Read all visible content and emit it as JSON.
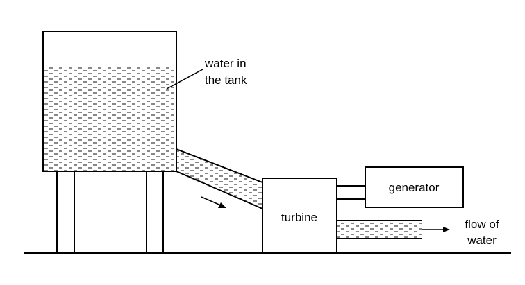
{
  "labels": {
    "water_tank_line1": "water in",
    "water_tank_line2": "the tank",
    "turbine": "turbine",
    "generator": "generator",
    "flow_line1": "flow of",
    "flow_line2": "water"
  },
  "colors": {
    "stroke": "#000000",
    "water_dash": "#555555",
    "background": "#ffffff"
  }
}
